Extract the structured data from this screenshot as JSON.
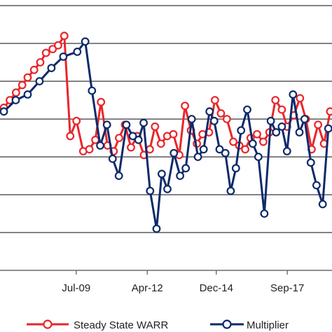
{
  "chart_data": {
    "type": "line",
    "x_tick_labels": [
      {
        "label": "Jul-09",
        "value": 2009.5
      },
      {
        "label": "Apr-12",
        "value": 2012.25
      },
      {
        "label": "Dec-14",
        "value": 2014.92
      },
      {
        "label": "Sep-17",
        "value": 2017.67
      }
    ],
    "x_range": [
      2006.55,
      2019.4
    ],
    "y_range": [
      0,
      7
    ],
    "grid": true,
    "legend_position": "bottom",
    "series": [
      {
        "name": "Steady State WARR",
        "color": "#e8262b",
        "x": [
          2006.7,
          2006.93,
          2007.17,
          2007.41,
          2007.62,
          2007.87,
          2008.11,
          2008.33,
          2008.59,
          2008.8,
          2009.04,
          2009.27,
          2009.51,
          2009.77,
          2010.01,
          2010.24,
          2010.46,
          2010.71,
          2010.95,
          2011.16,
          2011.39,
          2011.62,
          2011.86,
          2012.12,
          2012.35,
          2012.55,
          2012.78,
          2013.02,
          2013.26,
          2013.49,
          2013.71,
          2013.94,
          2014.17,
          2014.39,
          2014.64,
          2014.87,
          2015.1,
          2015.33,
          2015.58,
          2015.81,
          2016.04,
          2016.25,
          2016.5,
          2016.74,
          2016.98,
          2017.21,
          2017.46,
          2017.66,
          2017.92,
          2018.16,
          2018.39,
          2018.61,
          2018.86,
          2019.09,
          2019.33
        ],
        "y": [
          4.3,
          4.5,
          4.7,
          4.9,
          5.1,
          5.3,
          5.5,
          5.75,
          5.85,
          5.95,
          6.2,
          3.55,
          3.95,
          3.15,
          3.2,
          3.45,
          4.45,
          3.3,
          3.15,
          3.5,
          3.85,
          3.25,
          3.55,
          3.05,
          3.2,
          3.8,
          3.35,
          3.55,
          3.6,
          3.05,
          4.35,
          3.7,
          3.35,
          3.6,
          3.65,
          4.5,
          4.15,
          4.0,
          3.4,
          3.3,
          3.2,
          3.5,
          3.6,
          3.4,
          3.65,
          4.5,
          4.25,
          3.8,
          4.1,
          4.55,
          4.0,
          3.2,
          3.85,
          3.35,
          4.2
        ]
      },
      {
        "name": "Multiplier",
        "color": "#0e2a6b",
        "x": [
          2006.7,
          2007.16,
          2007.62,
          2008.08,
          2008.54,
          2009.0,
          2009.54,
          2009.85,
          2010.11,
          2010.43,
          2010.69,
          2010.91,
          2011.15,
          2011.44,
          2011.69,
          2011.91,
          2012.11,
          2012.36,
          2012.61,
          2012.81,
          2013.03,
          2013.28,
          2013.52,
          2013.74,
          2013.97,
          2014.21,
          2014.43,
          2014.66,
          2014.84,
          2015.05,
          2015.27,
          2015.48,
          2015.68,
          2015.88,
          2016.12,
          2016.33,
          2016.55,
          2016.78,
          2017.03,
          2017.24,
          2017.46,
          2017.66,
          2017.89,
          2018.14,
          2018.34,
          2018.58,
          2018.8,
          2019.04,
          2019.26
        ],
        "y": [
          4.2,
          4.5,
          4.65,
          5.0,
          5.35,
          5.65,
          5.78,
          6.05,
          4.75,
          3.3,
          3.85,
          2.95,
          2.5,
          3.85,
          3.55,
          3.45,
          3.9,
          2.1,
          1.1,
          2.55,
          2.15,
          3.1,
          2.5,
          2.7,
          4.0,
          3.0,
          3.2,
          4.2,
          3.95,
          3.2,
          3.1,
          2.1,
          2.7,
          3.7,
          4.25,
          3.35,
          3.0,
          1.5,
          3.95,
          3.65,
          3.8,
          3.15,
          4.65,
          3.65,
          4.0,
          2.85,
          2.25,
          1.75,
          3.75
        ]
      }
    ]
  },
  "legend": {
    "items": [
      {
        "label": "Steady State WARR",
        "color": "#e8262b"
      },
      {
        "label": "Multiplier",
        "color": "#0e2a6b"
      }
    ]
  }
}
